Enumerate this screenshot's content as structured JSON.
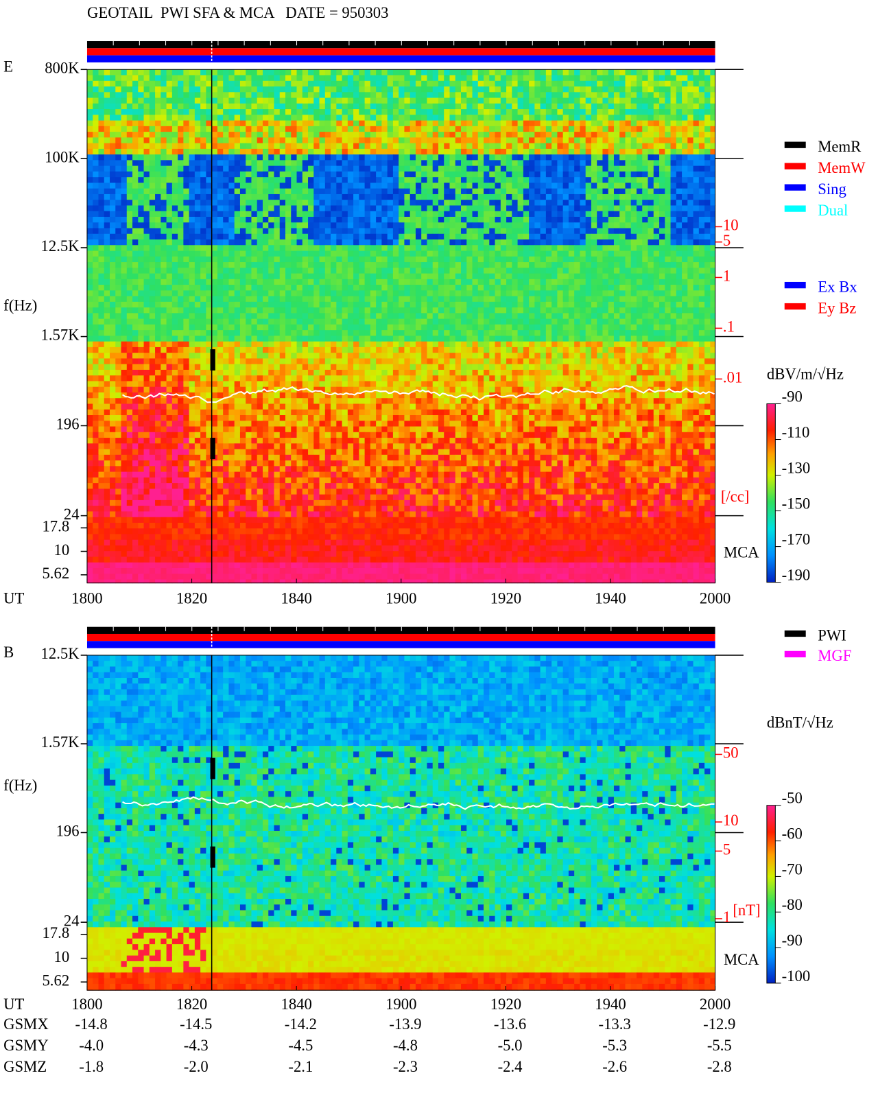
{
  "chart_data": [
    {
      "type": "spectrogram",
      "title": "GEOTAIL  PWI SFA & MCA   DATE = 950303",
      "panel_label": "E",
      "y_label": "f(Hz)",
      "x_label": "UT",
      "categories": [
        "1800",
        "1820",
        "1840",
        "1900",
        "1920",
        "1940",
        "2000"
      ],
      "log_y": true,
      "ylim": [
        24,
        800000
      ],
      "yticks": [
        {
          "value": 800000,
          "label": "800K"
        },
        {
          "value": 100000,
          "label": "100K"
        },
        {
          "value": 12500,
          "label": "12.5K"
        },
        {
          "value": 1570,
          "label": "1.57K"
        },
        196,
        24
      ],
      "mca_label": "MCA",
      "mca_ylim": [
        4.6,
        24
      ],
      "mca_yticks": [
        17.8,
        10,
        5.62
      ],
      "colorbar": {
        "label": "dBV/m/√Hz",
        "lim": [
          -190,
          -90
        ],
        "ticks": [
          -90,
          -110,
          -130,
          -150,
          -170,
          -190
        ]
      },
      "aux_scale": {
        "label": "[/cc]",
        "color": "#ff0000",
        "lim": [
          0.01,
          10
        ],
        "ticks": [
          10,
          5,
          1,
          {
            "value": 0.1,
            "label": ".1"
          },
          {
            "value": 0.01,
            "label": ".01"
          }
        ]
      },
      "legend": [
        {
          "name": "MemR",
          "color": "#000000"
        },
        {
          "name": "MemW",
          "color": "#ff0000"
        },
        {
          "name": "Sing",
          "color": "#0000ff"
        },
        {
          "name": "Dual",
          "color": "#00ffff"
        }
      ],
      "legend2": [
        {
          "name": "Ex Bx",
          "color": "#0000ff"
        },
        {
          "name": "Ey Bz",
          "color": "#ff0000"
        }
      ]
    },
    {
      "type": "spectrogram",
      "panel_label": "B",
      "y_label": "f(Hz)",
      "x_label": "UT",
      "categories": [
        "1800",
        "1820",
        "1840",
        "1900",
        "1920",
        "1940",
        "2000"
      ],
      "log_y": true,
      "ylim": [
        24,
        12500
      ],
      "yticks": [
        {
          "value": 12500,
          "label": "12.5K"
        },
        {
          "value": 1570,
          "label": "1.57K"
        },
        196,
        24
      ],
      "mca_label": "MCA",
      "mca_ylim": [
        4.6,
        24
      ],
      "mca_yticks": [
        17.8,
        10,
        5.62
      ],
      "colorbar": {
        "label": "dBnT/√Hz",
        "lim": [
          -100,
          -50
        ],
        "ticks": [
          -50,
          -60,
          -70,
          -80,
          -90,
          -100
        ]
      },
      "aux_scale": {
        "label": "[nT]",
        "color": "#ff0000",
        "lim": [
          1,
          50
        ],
        "ticks": [
          50,
          10,
          5,
          1
        ]
      },
      "legend": [
        {
          "name": "PWI",
          "color": "#000000"
        },
        {
          "name": "MGF",
          "color": "#ff00ff"
        }
      ]
    }
  ],
  "ephemeris": {
    "rows": [
      {
        "name": "GSMX",
        "values": [
          "-14.8",
          "-14.5",
          "-14.2",
          "-13.9",
          "-13.6",
          "-13.3",
          "-12.9"
        ]
      },
      {
        "name": "GSMY",
        "values": [
          "-4.0",
          "-4.3",
          "-4.5",
          "-4.8",
          "-5.0",
          "-5.3",
          "-5.5"
        ]
      },
      {
        "name": "GSMZ",
        "values": [
          "-1.8",
          "-2.0",
          "-2.1",
          "-2.3",
          "-2.4",
          "-2.6",
          "-2.8"
        ]
      }
    ]
  }
}
